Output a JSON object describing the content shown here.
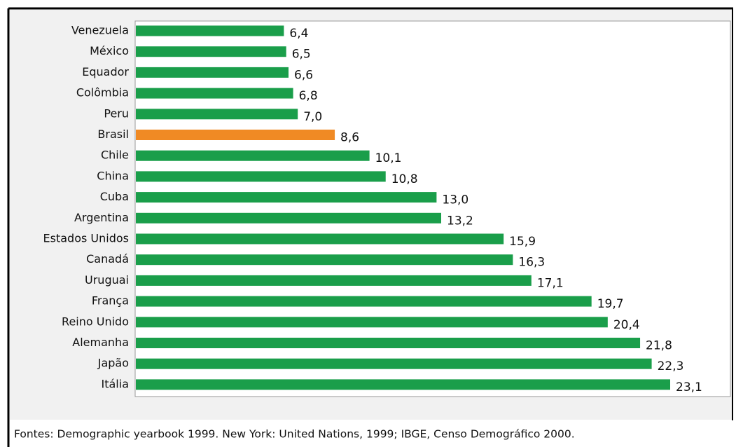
{
  "chart_data": {
    "type": "barh",
    "categories": [
      "Venezuela",
      "México",
      "Equador",
      "Colômbia",
      "Peru",
      "Brasil",
      "Chile",
      "China",
      "Cuba",
      "Argentina",
      "Estados Unidos",
      "Canadá",
      "Uruguai",
      "França",
      "Reino Unido",
      "Alemanha",
      "Japão",
      "Itália"
    ],
    "values": [
      6.4,
      6.5,
      6.6,
      6.8,
      7.0,
      8.6,
      10.1,
      10.8,
      13.0,
      13.2,
      15.9,
      16.3,
      17.1,
      19.7,
      20.4,
      21.8,
      22.3,
      23.1
    ],
    "value_labels": [
      "6,4",
      "6,5",
      "6,6",
      "6,8",
      "7,0",
      "8,6",
      "10,1",
      "10,8",
      "13,0",
      "13,2",
      "15,9",
      "16,3",
      "17,1",
      "19,7",
      "20,4",
      "21,8",
      "22,3",
      "23,1"
    ],
    "colors": [
      "#1a9e4a",
      "#1a9e4a",
      "#1a9e4a",
      "#1a9e4a",
      "#1a9e4a",
      "#f08a24",
      "#1a9e4a",
      "#1a9e4a",
      "#1a9e4a",
      "#1a9e4a",
      "#1a9e4a",
      "#1a9e4a",
      "#1a9e4a",
      "#1a9e4a",
      "#1a9e4a",
      "#1a9e4a",
      "#1a9e4a",
      "#1a9e4a"
    ],
    "source": "Fontes: Demographic yearbook 1999. New York: United Nations, 1999; IBGE, Censo Demográfico 2000."
  }
}
